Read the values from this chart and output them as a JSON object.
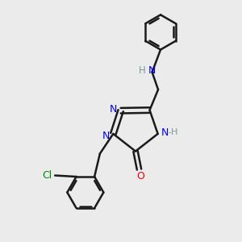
{
  "background_color": "#ebebeb",
  "bond_color": "#1a1a1a",
  "bond_width": 1.8,
  "N_color": "#0000ee",
  "O_color": "#ee0000",
  "Cl_color": "#008800",
  "H_color": "#7a9a9a",
  "figsize": [
    3.0,
    3.0
  ],
  "dpi": 100,
  "xlim": [
    0,
    10
  ],
  "ylim": [
    0,
    10
  ]
}
